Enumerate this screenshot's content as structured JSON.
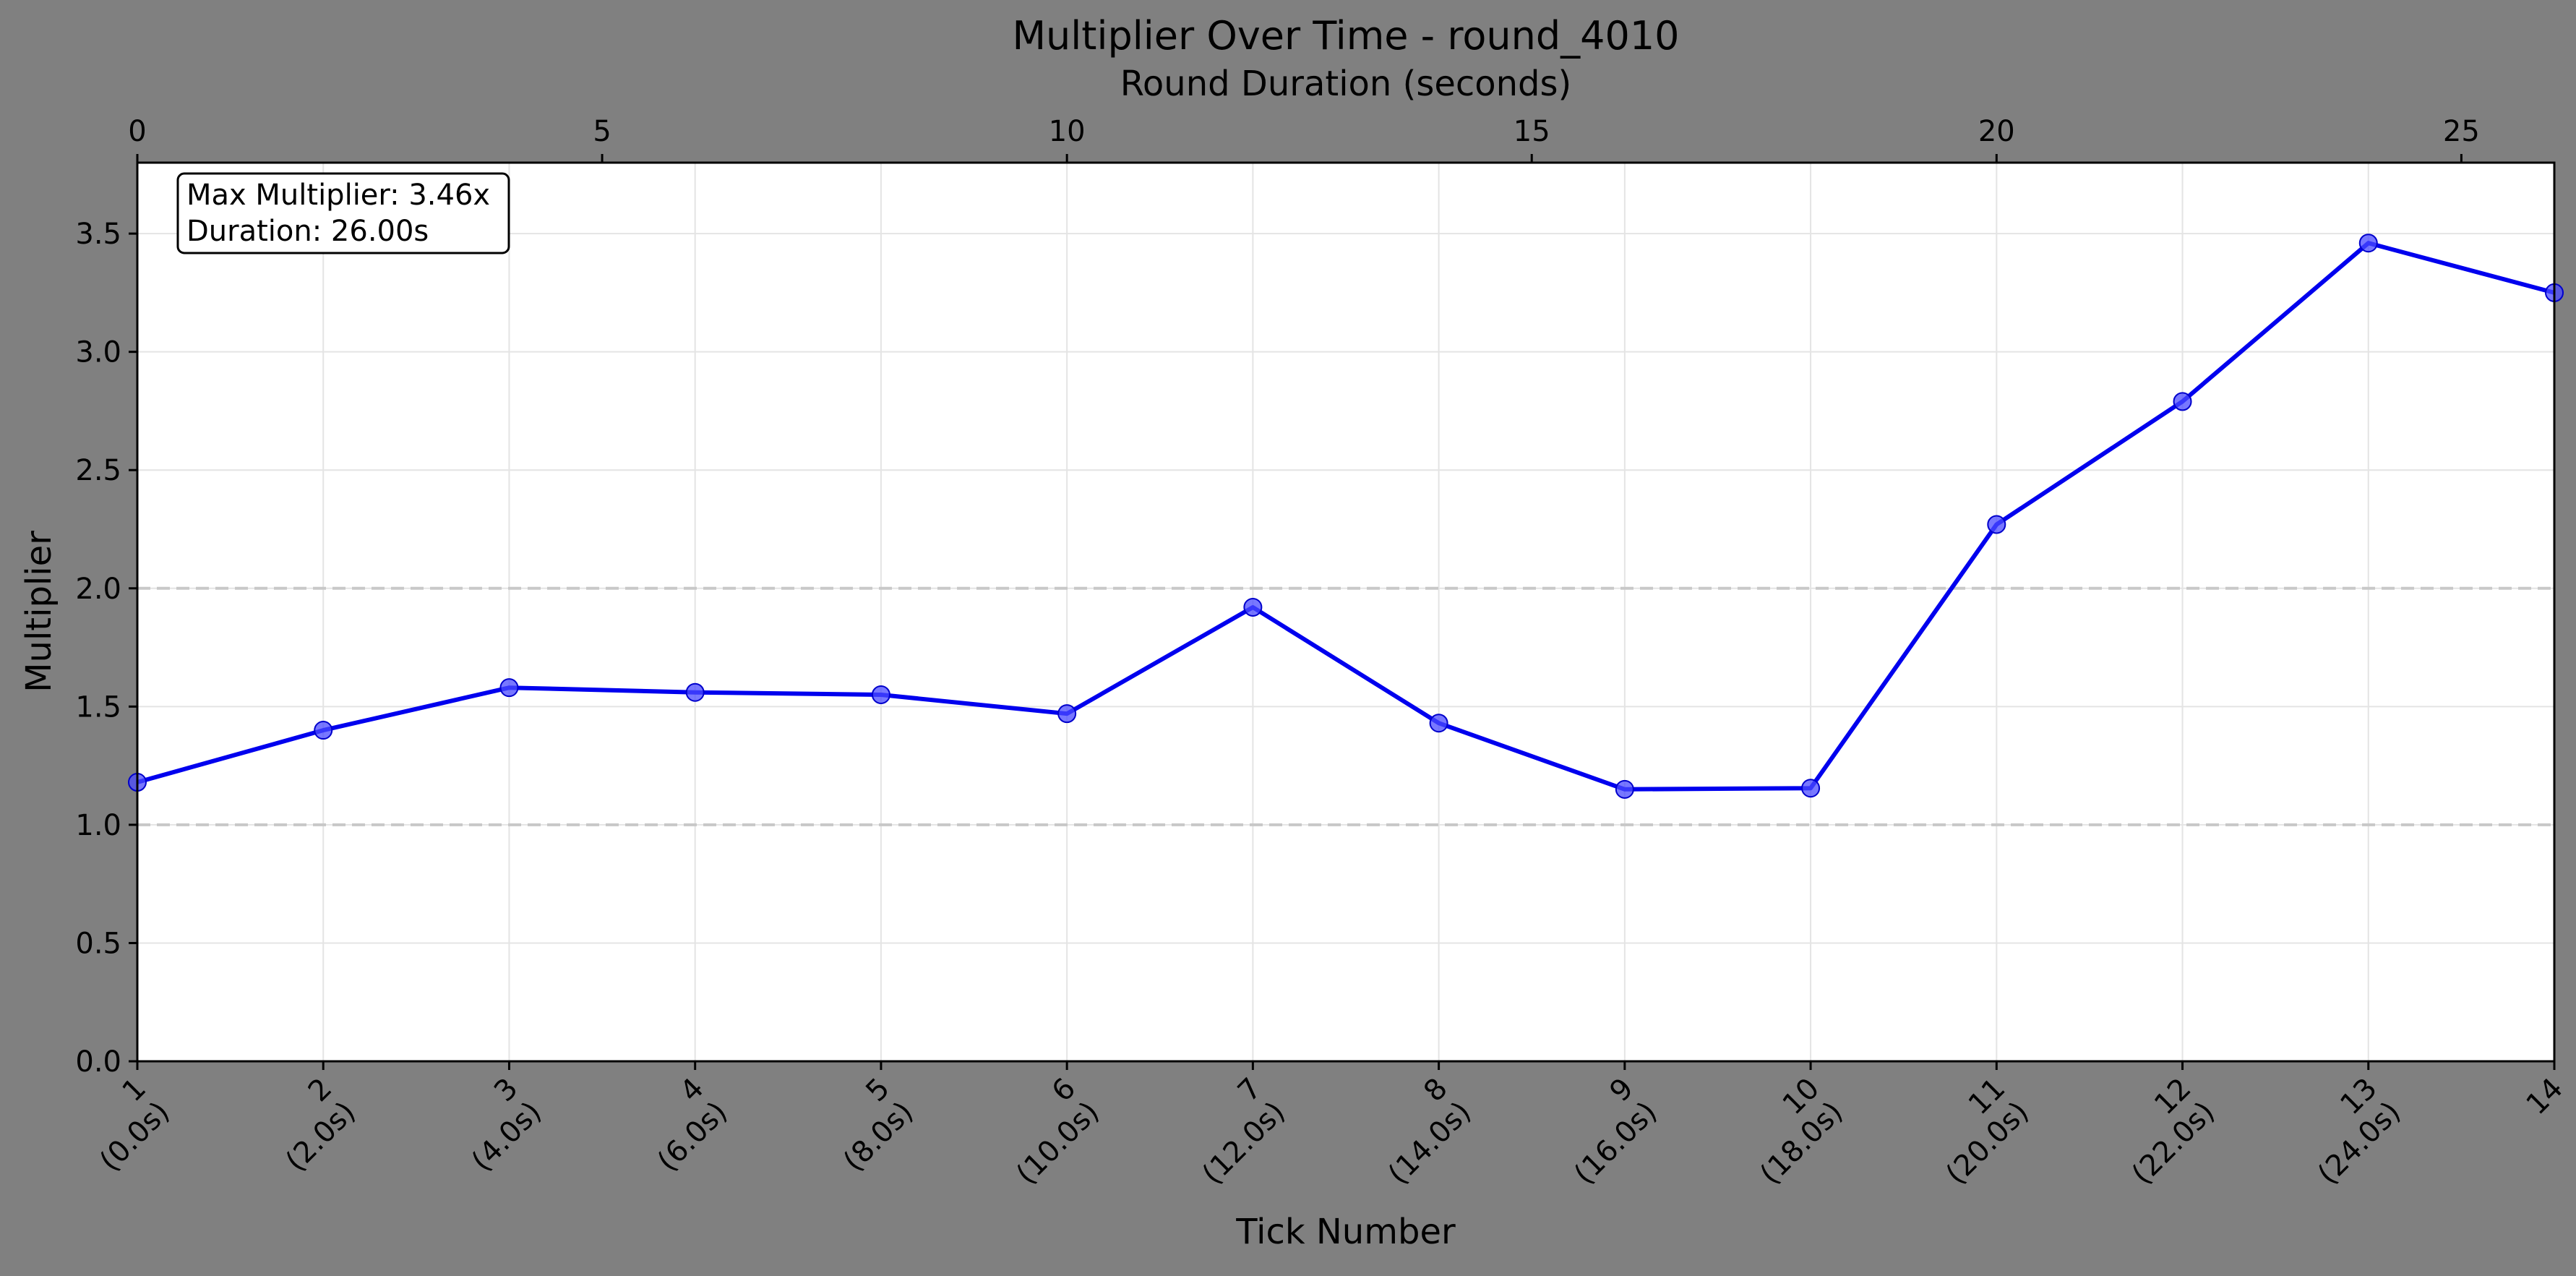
{
  "chart_data": {
    "type": "line",
    "title": "Multiplier Over Time - round_4010",
    "xlabel": "Tick Number",
    "ylabel": "Multiplier",
    "top_xlabel": "Round Duration (seconds)",
    "x": [
      0,
      2,
      4,
      6,
      8,
      10,
      12,
      14,
      16,
      18,
      20,
      22,
      24,
      26
    ],
    "values": [
      1.18,
      1.4,
      1.58,
      1.56,
      1.55,
      1.47,
      1.92,
      1.43,
      1.15,
      1.155,
      2.27,
      2.79,
      3.46,
      3.25
    ],
    "xlim": [
      0,
      26
    ],
    "ylim": [
      0,
      3.8
    ],
    "yticks": [
      0.0,
      0.5,
      1.0,
      1.5,
      2.0,
      2.5,
      3.0,
      3.5
    ],
    "ytick_labels": [
      "0.0",
      "0.5",
      "1.0",
      "1.5",
      "2.0",
      "2.5",
      "3.0",
      "3.5"
    ],
    "top_xticks": [
      0,
      5,
      10,
      15,
      20,
      25
    ],
    "top_xtick_labels": [
      "0",
      "5",
      "10",
      "15",
      "20",
      "25"
    ],
    "bottom_xtick_labels": [
      [
        "1",
        "(0.0s)"
      ],
      [
        "2",
        "(2.0s)"
      ],
      [
        "3",
        "(4.0s)"
      ],
      [
        "4",
        "(6.0s)"
      ],
      [
        "5",
        "(8.0s)"
      ],
      [
        "6",
        "(10.0s)"
      ],
      [
        "7",
        "(12.0s)"
      ],
      [
        "8",
        "(14.0s)"
      ],
      [
        "9",
        "(16.0s)"
      ],
      [
        "10",
        "(18.0s)"
      ],
      [
        "11",
        "(20.0s)"
      ],
      [
        "12",
        "(22.0s)"
      ],
      [
        "13",
        "(24.0s)"
      ],
      [
        "14",
        ""
      ]
    ],
    "reference_lines": [
      1.0,
      2.0
    ],
    "annotation": [
      "Max Multiplier: 3.46x",
      "Duration: 26.00s"
    ],
    "grid": true,
    "line_color": "#0000ee",
    "marker_color": "#4b4bff",
    "reference_line_color": "#c8c8c8",
    "background_color": "#808080",
    "plot_background": "#ffffff"
  }
}
